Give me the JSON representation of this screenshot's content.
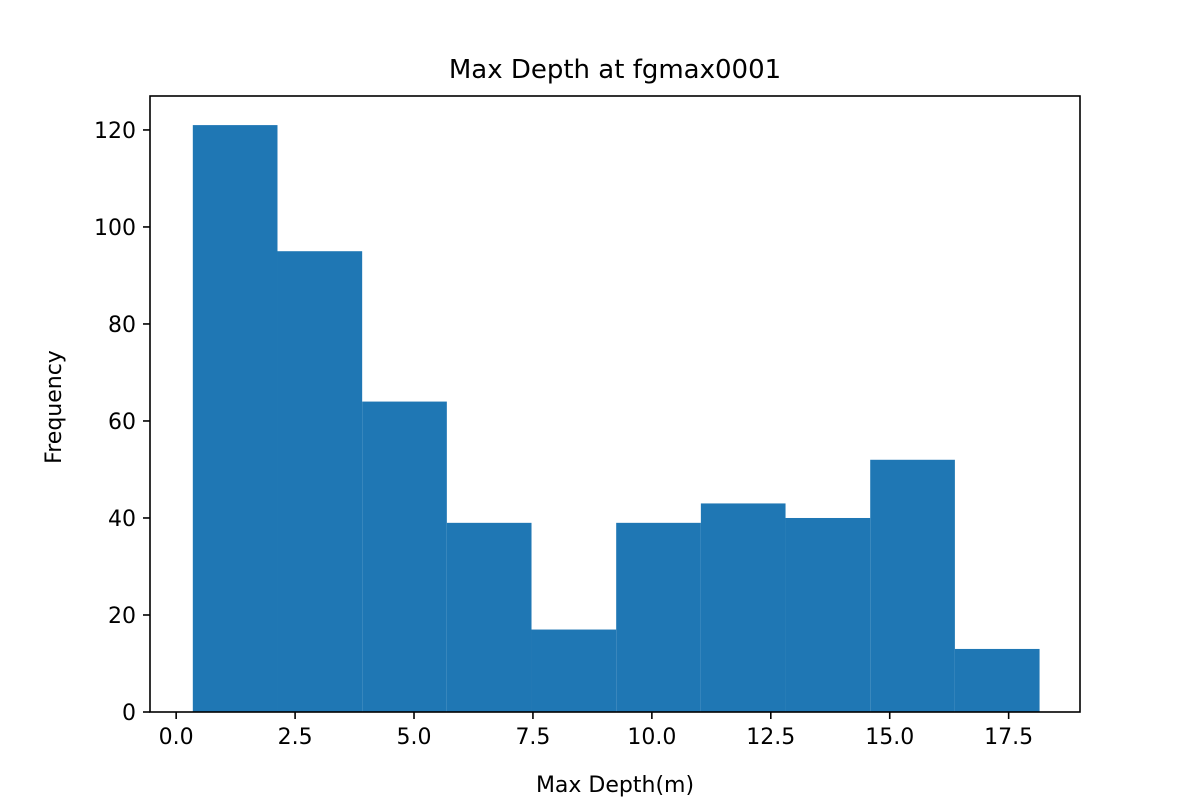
{
  "chart_data": {
    "type": "bar",
    "title": "Max Depth at fgmax0001",
    "xlabel": "Max Depth(m)",
    "ylabel": "Frequency",
    "xlim": [
      -0.55,
      19.0
    ],
    "ylim": [
      0,
      127
    ],
    "xticks": [
      0.0,
      2.5,
      5.0,
      7.5,
      10.0,
      12.5,
      15.0,
      17.5
    ],
    "xtick_labels": [
      "0.0",
      "2.5",
      "5.0",
      "7.5",
      "10.0",
      "12.5",
      "15.0",
      "17.5"
    ],
    "yticks": [
      0,
      20,
      40,
      60,
      80,
      100,
      120
    ],
    "ytick_labels": [
      "0",
      "20",
      "40",
      "60",
      "80",
      "100",
      "120"
    ],
    "bin_edges": [
      0.35,
      2.13,
      3.91,
      5.69,
      7.47,
      9.25,
      11.03,
      12.81,
      14.59,
      16.37,
      18.15
    ],
    "values": [
      121,
      95,
      64,
      39,
      17,
      39,
      43,
      40,
      52,
      13
    ],
    "bar_color": "#1f77b4",
    "grid": false,
    "legend": "none"
  }
}
